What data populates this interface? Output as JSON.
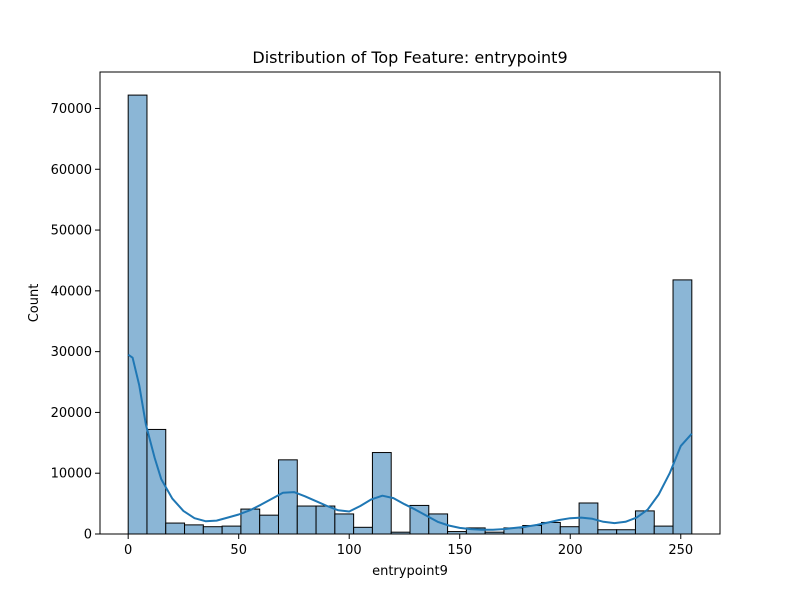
{
  "chart_data": {
    "type": "bar",
    "title": "Distribution of Top Feature: entrypoint9",
    "xlabel": "entrypoint9",
    "ylabel": "Count",
    "xlim": [
      -12.75,
      267.75
    ],
    "ylim": [
      0,
      76000
    ],
    "xticks": [
      0,
      50,
      100,
      150,
      200,
      250
    ],
    "yticks": [
      0,
      10000,
      20000,
      30000,
      40000,
      50000,
      60000,
      70000
    ],
    "bin_width": 8.5,
    "bin_start": 0,
    "counts": [
      72200,
      17200,
      1800,
      1500,
      1200,
      1300,
      4100,
      3100,
      12200,
      4600,
      4600,
      3300,
      1100,
      13400,
      300,
      4700,
      3300,
      400,
      1000,
      300,
      1000,
      1400,
      1900,
      1200,
      5100,
      700,
      700,
      3800,
      1300,
      41800
    ],
    "kde": {
      "x": [
        0,
        2,
        5,
        8,
        12,
        15,
        20,
        25,
        30,
        35,
        40,
        45,
        50,
        55,
        60,
        65,
        70,
        75,
        80,
        85,
        90,
        95,
        100,
        105,
        110,
        115,
        120,
        125,
        130,
        135,
        140,
        145,
        150,
        155,
        160,
        165,
        170,
        175,
        180,
        185,
        190,
        195,
        200,
        205,
        210,
        215,
        220,
        225,
        230,
        235,
        240,
        245,
        250,
        255
      ],
      "y": [
        29500,
        29000,
        24500,
        18000,
        12500,
        9000,
        5800,
        3800,
        2600,
        2100,
        2200,
        2700,
        3200,
        3900,
        4800,
        5800,
        6800,
        6900,
        6200,
        5400,
        4600,
        3900,
        3700,
        4600,
        5700,
        6300,
        5900,
        4900,
        4000,
        3000,
        2000,
        1400,
        1000,
        800,
        700,
        700,
        800,
        1000,
        1200,
        1500,
        1900,
        2300,
        2600,
        2700,
        2500,
        2000,
        1800,
        2000,
        2700,
        4000,
        6500,
        10000,
        14500,
        16500
      ]
    },
    "bar_color": "#8bb6d6",
    "bar_edge": "#000000",
    "line_color": "#1f77b4",
    "grid": false,
    "legend": "none"
  }
}
